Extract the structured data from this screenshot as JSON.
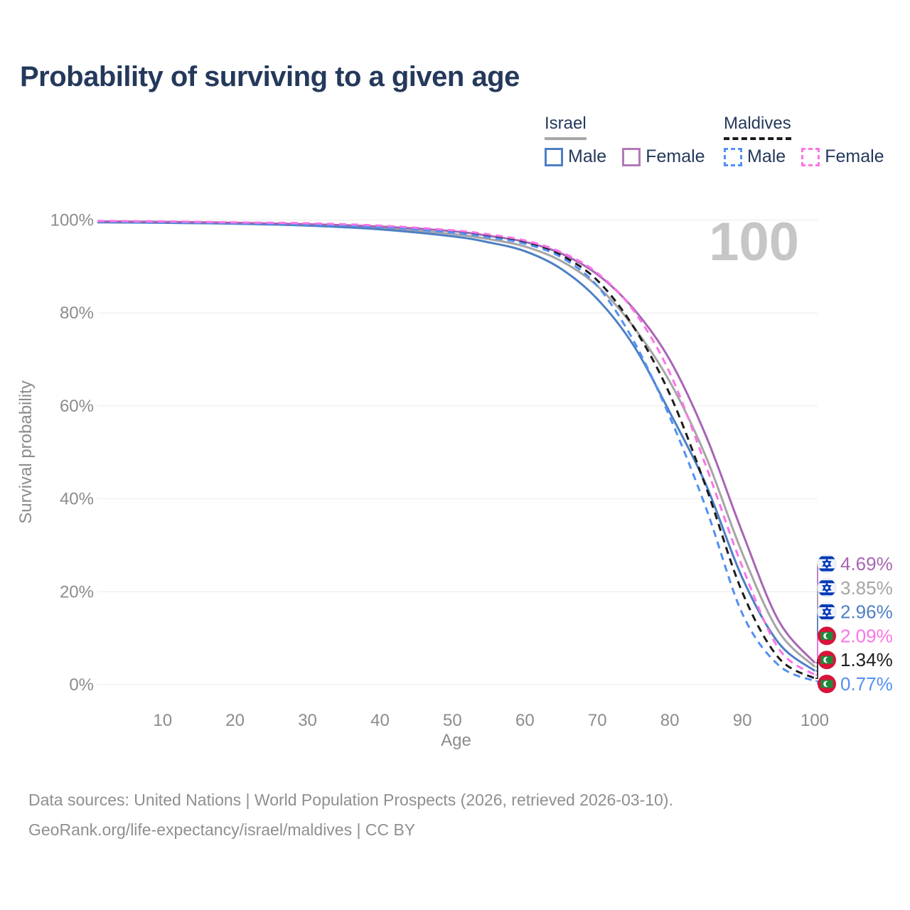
{
  "title": "Probability of surviving to a given age",
  "watermark": "100",
  "legend": {
    "groups": [
      {
        "title": "Israel",
        "underline_style": "solid",
        "underline_color": "#a8a8a8",
        "items": [
          {
            "label": "Male",
            "color": "#4d7fc4",
            "dashed": false
          },
          {
            "label": "Female",
            "color": "#b279b8",
            "dashed": false
          }
        ]
      },
      {
        "title": "Maldives",
        "underline_style": "dashed",
        "underline_color": "#1c1c1c",
        "items": [
          {
            "label": "Male",
            "color": "#5290f4",
            "dashed": true
          },
          {
            "label": "Female",
            "color": "#fb74e6",
            "dashed": true
          }
        ]
      }
    ]
  },
  "chart_data": {
    "type": "line",
    "title": "Probability of surviving to a given age",
    "xlabel": "Age",
    "ylabel": "Survival probability",
    "xlim": [
      1,
      100
    ],
    "ylim": [
      0,
      100
    ],
    "x_ticks": [
      10,
      20,
      30,
      40,
      50,
      60,
      70,
      80,
      90,
      100
    ],
    "y_ticks": [
      0,
      20,
      40,
      60,
      80,
      100
    ],
    "y_tick_suffix": "%",
    "grid": true,
    "legend_position": "top-right",
    "x": [
      1,
      10,
      20,
      30,
      40,
      50,
      55,
      60,
      65,
      70,
      75,
      80,
      85,
      90,
      95,
      100
    ],
    "series": [
      {
        "name": "israel-female",
        "country": "israel",
        "sex": "female",
        "color": "#a765b5",
        "dashed": false,
        "end_label": "4.69%",
        "values": [
          99.7,
          99.6,
          99.4,
          99.1,
          98.6,
          97.6,
          96.6,
          95.3,
          92.8,
          88.3,
          80.9,
          69.9,
          53.5,
          32.8,
          13.8,
          4.69
        ]
      },
      {
        "name": "israel-both-sexes",
        "country": "israel",
        "sex": "both",
        "color": "#a5a5a5",
        "dashed": false,
        "end_label": "3.85%",
        "values": [
          99.6,
          99.5,
          99.3,
          99.0,
          98.3,
          97.0,
          95.9,
          94.3,
          91.2,
          85.8,
          77.0,
          65.2,
          49.0,
          28.3,
          11.5,
          3.85
        ]
      },
      {
        "name": "israel-male",
        "country": "israel",
        "sex": "male",
        "color": "#4d7fc4",
        "dashed": false,
        "end_label": "2.96%",
        "values": [
          99.5,
          99.4,
          99.2,
          98.8,
          98.0,
          96.5,
          95.2,
          93.3,
          89.5,
          83.0,
          73.0,
          58.6,
          43.0,
          23.0,
          9.0,
          2.96
        ]
      },
      {
        "name": "maldives-female",
        "country": "maldives",
        "sex": "female",
        "color": "#fb74e6",
        "dashed": true,
        "end_label": "2.09%",
        "values": [
          99.8,
          99.7,
          99.5,
          99.3,
          98.8,
          97.8,
          96.9,
          95.6,
          93.1,
          88.6,
          80.5,
          67.1,
          47.0,
          25.4,
          7.8,
          2.09
        ]
      },
      {
        "name": "maldives-both-sexes",
        "country": "maldives",
        "sex": "both",
        "color": "#1c1c1c",
        "dashed": true,
        "end_label": "1.34%",
        "values": [
          99.7,
          99.6,
          99.4,
          99.1,
          98.6,
          97.5,
          96.5,
          95.1,
          92.4,
          87.0,
          77.0,
          62.5,
          42.5,
          19.9,
          5.8,
          1.34
        ]
      },
      {
        "name": "maldives-male",
        "country": "maldives",
        "sex": "male",
        "color": "#5290f4",
        "dashed": true,
        "end_label": "0.77%",
        "values": [
          99.7,
          99.5,
          99.3,
          99.0,
          98.5,
          97.3,
          96.3,
          94.9,
          92.0,
          85.8,
          74.0,
          57.6,
          38.0,
          15.3,
          4.2,
          0.77
        ]
      }
    ]
  },
  "flag_colors": {
    "israel_blue": "#0038b8",
    "israel_bg": "#f1f3f7",
    "maldives_red": "#d7143a",
    "maldives_green": "#1e8a3c",
    "maldives_white": "#ffffff"
  },
  "footer": {
    "line1": "Data sources: United Nations | World Population Prospects (2026, retrieved 2026-03-10).",
    "line2": "GeoRank.org/life-expectancy/israel/maldives | CC BY"
  }
}
